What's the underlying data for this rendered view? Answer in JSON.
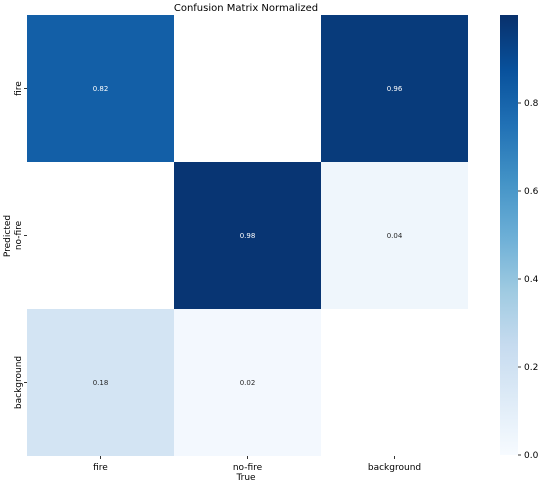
{
  "chart_data": {
    "type": "heatmap",
    "title": "Confusion Matrix Normalized",
    "xlabel": "True",
    "ylabel": "Predicted",
    "x_categories": [
      "fire",
      "no-fire",
      "background"
    ],
    "y_categories": [
      "fire",
      "no-fire",
      "background"
    ],
    "values": [
      [
        0.82,
        null,
        0.96
      ],
      [
        null,
        0.98,
        0.04
      ],
      [
        0.18,
        0.02,
        null
      ]
    ],
    "value_labels": [
      [
        "0.82",
        "",
        "0.96"
      ],
      [
        "",
        "0.98",
        "0.04"
      ],
      [
        "0.18",
        "0.02",
        ""
      ]
    ],
    "colormap": "Blues",
    "vmin": 0,
    "vmax": 1,
    "colorbar_ticks": [
      0.0,
      0.2,
      0.4,
      0.6,
      0.8
    ],
    "colorbar_tick_labels": [
      "0.0",
      "0.2",
      "0.4",
      "0.6",
      "0.8"
    ],
    "grid": false,
    "legend": "colorbar-right"
  }
}
